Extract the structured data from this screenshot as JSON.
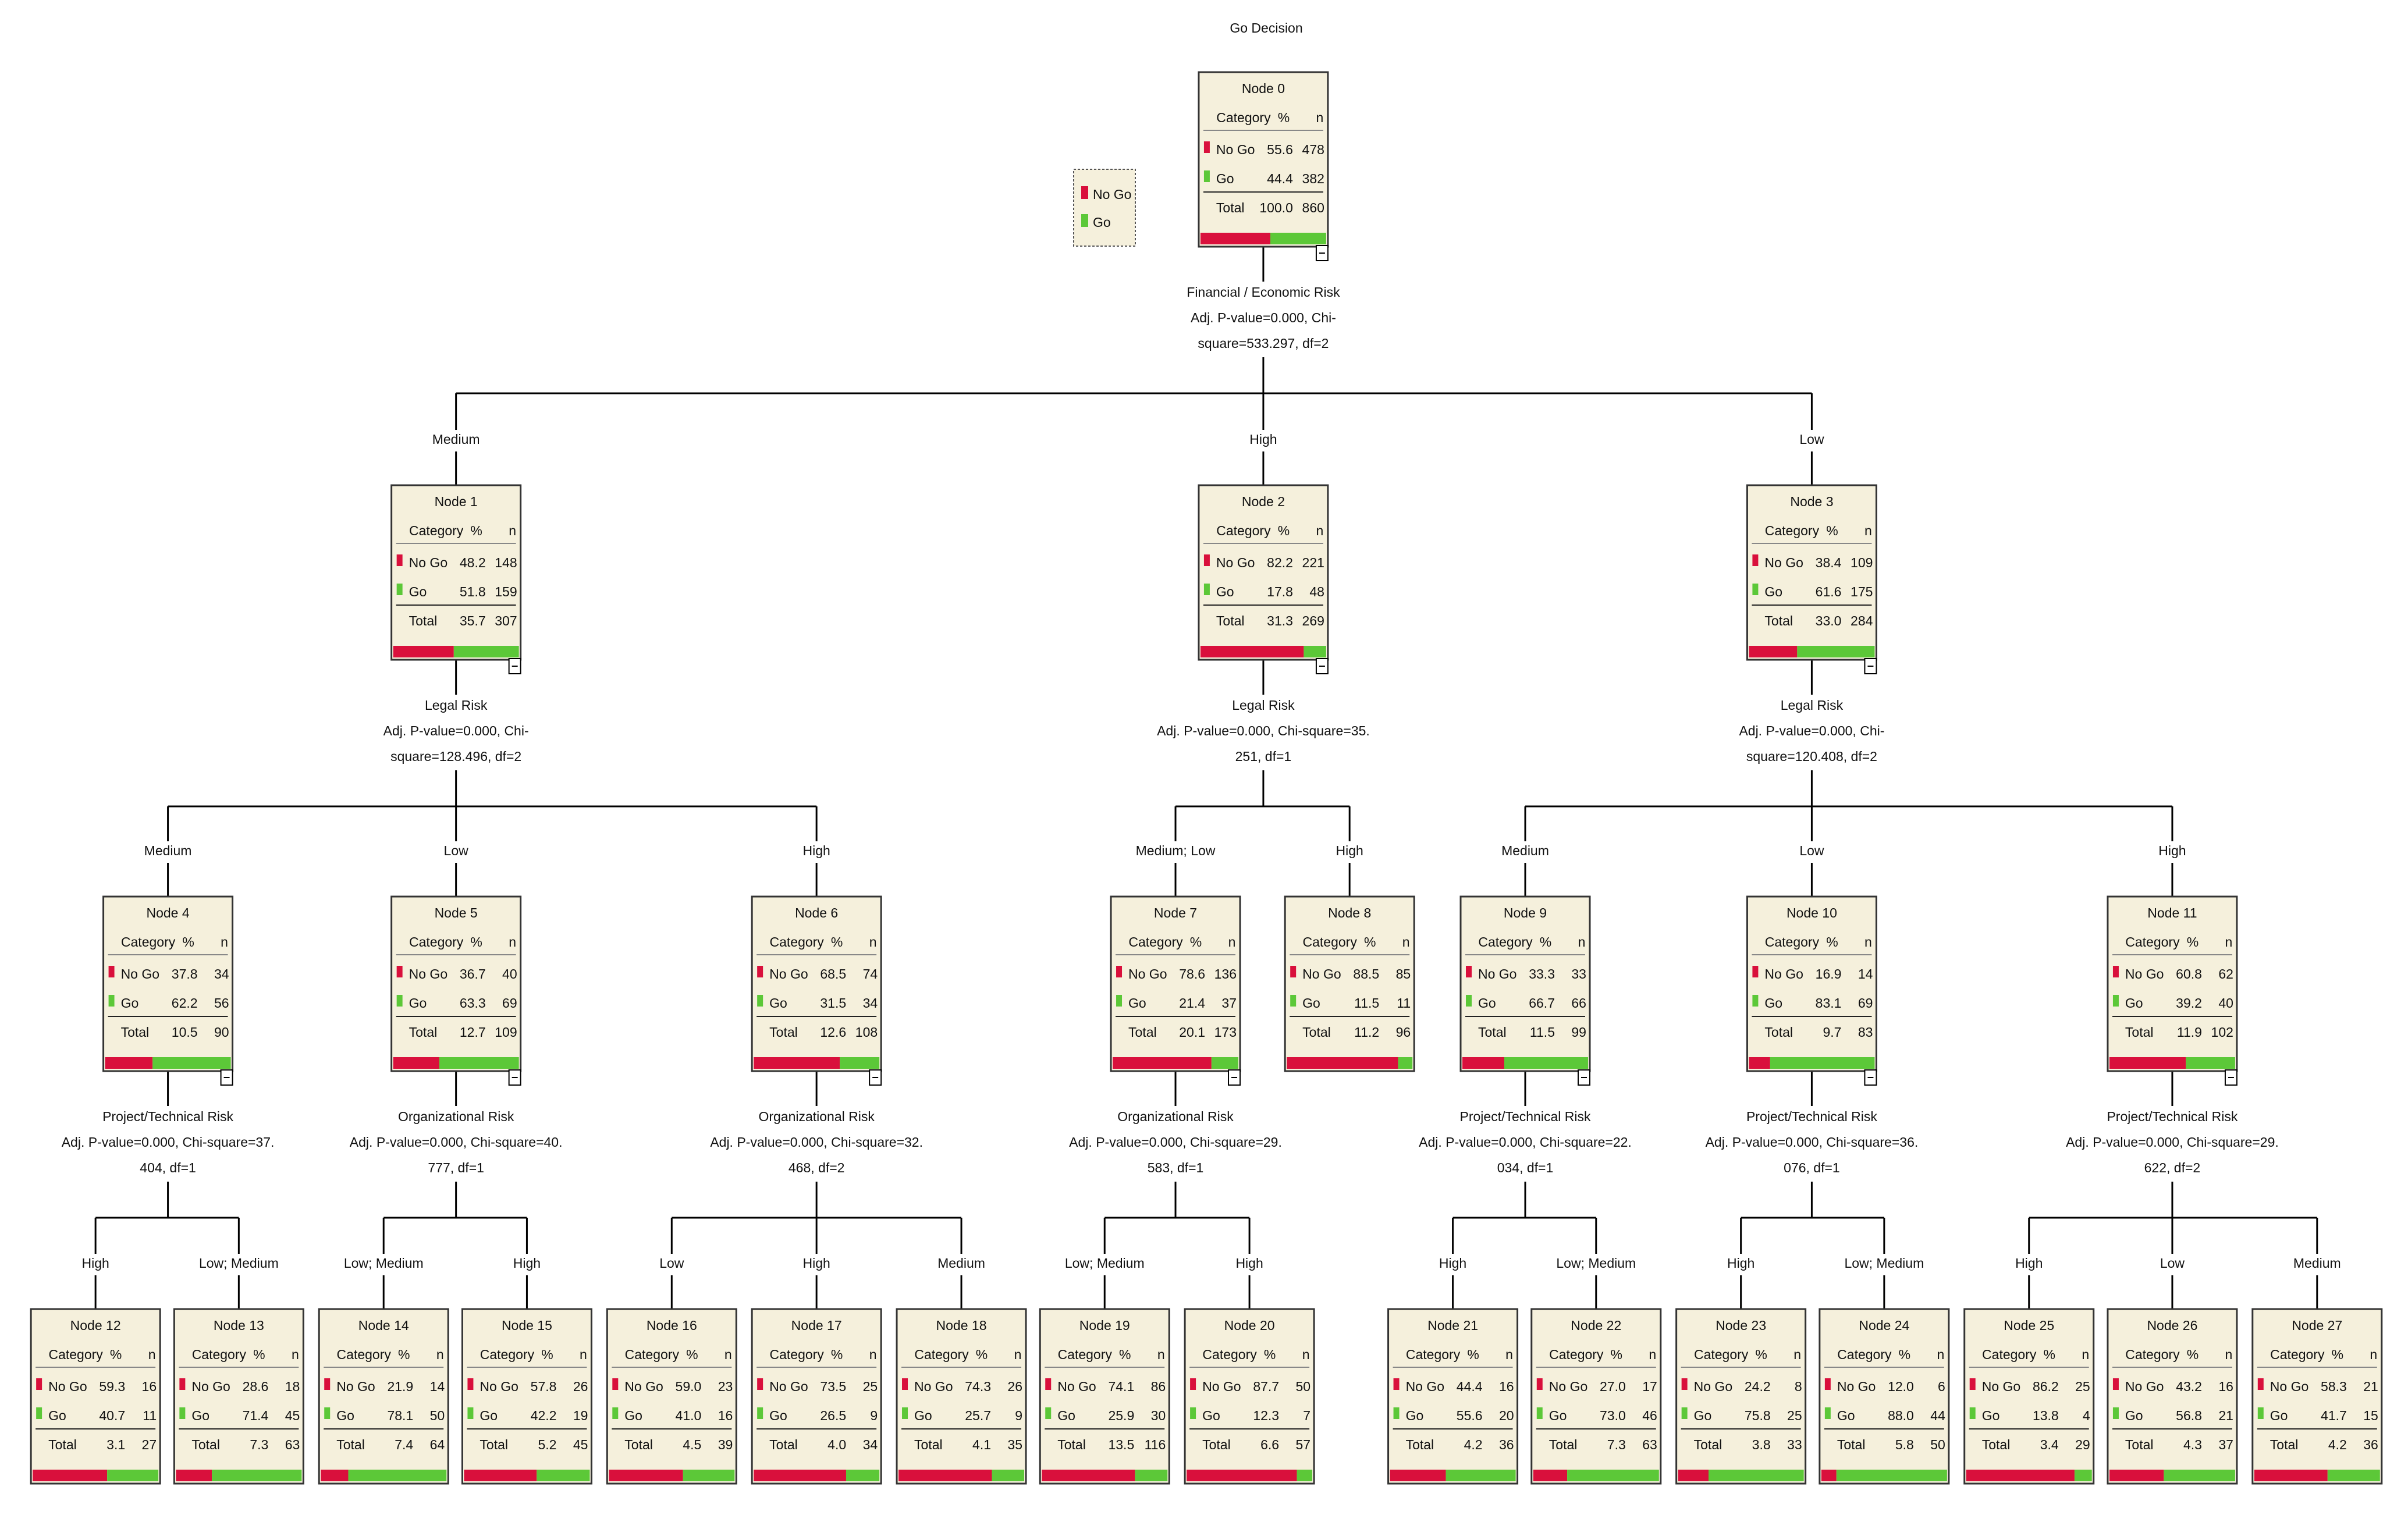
{
  "title": "Go Decision",
  "categories": [
    "No Go",
    "Go"
  ],
  "legend": [
    {
      "label": "No Go",
      "color": "#d9103c"
    },
    {
      "label": "Go",
      "color": "#5cc838"
    }
  ],
  "header": [
    "Category",
    "%",
    "n"
  ],
  "total_label": "Total",
  "nodes": [
    {
      "name": "Node 0",
      "rows": [
        {
          "pct": "55.6",
          "n": 478
        },
        {
          "pct": "44.4",
          "n": 382
        },
        {
          "pct": "100.0",
          "n": 860
        }
      ],
      "split": [
        "Financial / Economic Risk",
        "Adj. P-value=0.000, Chi-",
        "square=533.297, df=2"
      ]
    },
    {
      "name": "Node 1",
      "edge": "Medium",
      "rows": [
        {
          "pct": "48.2",
          "n": 148
        },
        {
          "pct": "51.8",
          "n": 159
        },
        {
          "pct": "35.7",
          "n": 307
        }
      ],
      "split": [
        "Legal Risk",
        "Adj. P-value=0.000, Chi-",
        "square=128.496, df=2"
      ]
    },
    {
      "name": "Node 2",
      "edge": "High",
      "rows": [
        {
          "pct": "82.2",
          "n": 221
        },
        {
          "pct": "17.8",
          "n": 48
        },
        {
          "pct": "31.3",
          "n": 269
        }
      ],
      "split": [
        "Legal Risk",
        "Adj. P-value=0.000, Chi-square=35.",
        "251, df=1"
      ]
    },
    {
      "name": "Node 3",
      "edge": "Low",
      "rows": [
        {
          "pct": "38.4",
          "n": 109
        },
        {
          "pct": "61.6",
          "n": 175
        },
        {
          "pct": "33.0",
          "n": 284
        }
      ],
      "split": [
        "Legal Risk",
        "Adj. P-value=0.000, Chi-",
        "square=120.408, df=2"
      ]
    },
    {
      "name": "Node 4",
      "edge": "Medium",
      "rows": [
        {
          "pct": "37.8",
          "n": 34
        },
        {
          "pct": "62.2",
          "n": 56
        },
        {
          "pct": "10.5",
          "n": 90
        }
      ],
      "split": [
        "Project/Technical Risk",
        "Adj. P-value=0.000, Chi-square=37.",
        "404, df=1"
      ]
    },
    {
      "name": "Node 5",
      "edge": "Low",
      "rows": [
        {
          "pct": "36.7",
          "n": 40
        },
        {
          "pct": "63.3",
          "n": 69
        },
        {
          "pct": "12.7",
          "n": 109
        }
      ],
      "split": [
        "Organizational Risk",
        "Adj. P-value=0.000, Chi-square=40.",
        "777, df=1"
      ]
    },
    {
      "name": "Node 6",
      "edge": "High",
      "rows": [
        {
          "pct": "68.5",
          "n": 74
        },
        {
          "pct": "31.5",
          "n": 34
        },
        {
          "pct": "12.6",
          "n": 108
        }
      ],
      "split": [
        "Organizational Risk",
        "Adj. P-value=0.000, Chi-square=32.",
        "468, df=2"
      ]
    },
    {
      "name": "Node 7",
      "edge": "Medium; Low",
      "rows": [
        {
          "pct": "78.6",
          "n": 136
        },
        {
          "pct": "21.4",
          "n": 37
        },
        {
          "pct": "20.1",
          "n": 173
        }
      ],
      "split": [
        "Organizational Risk",
        "Adj. P-value=0.000, Chi-square=29.",
        "583, df=1"
      ]
    },
    {
      "name": "Node 8",
      "edge": "High",
      "rows": [
        {
          "pct": "88.5",
          "n": 85
        },
        {
          "pct": "11.5",
          "n": 11
        },
        {
          "pct": "11.2",
          "n": 96
        }
      ]
    },
    {
      "name": "Node 9",
      "edge": "Medium",
      "rows": [
        {
          "pct": "33.3",
          "n": 33
        },
        {
          "pct": "66.7",
          "n": 66
        },
        {
          "pct": "11.5",
          "n": 99
        }
      ],
      "split": [
        "Project/Technical Risk",
        "Adj. P-value=0.000, Chi-square=22.",
        "034, df=1"
      ]
    },
    {
      "name": "Node 10",
      "edge": "Low",
      "rows": [
        {
          "pct": "16.9",
          "n": 14
        },
        {
          "pct": "83.1",
          "n": 69
        },
        {
          "pct": "9.7",
          "n": 83
        }
      ],
      "split": [
        "Project/Technical Risk",
        "Adj. P-value=0.000, Chi-square=36.",
        "076, df=1"
      ]
    },
    {
      "name": "Node 11",
      "edge": "High",
      "rows": [
        {
          "pct": "60.8",
          "n": 62
        },
        {
          "pct": "39.2",
          "n": 40
        },
        {
          "pct": "11.9",
          "n": 102
        }
      ],
      "split": [
        "Project/Technical Risk",
        "Adj. P-value=0.000, Chi-square=29.",
        "622, df=2"
      ]
    },
    {
      "name": "Node 12",
      "edge": "High",
      "rows": [
        {
          "pct": "59.3",
          "n": 16
        },
        {
          "pct": "40.7",
          "n": 11
        },
        {
          "pct": "3.1",
          "n": 27
        }
      ]
    },
    {
      "name": "Node 13",
      "edge": "Low; Medium",
      "rows": [
        {
          "pct": "28.6",
          "n": 18
        },
        {
          "pct": "71.4",
          "n": 45
        },
        {
          "pct": "7.3",
          "n": 63
        }
      ]
    },
    {
      "name": "Node 14",
      "edge": "Low; Medium",
      "rows": [
        {
          "pct": "21.9",
          "n": 14
        },
        {
          "pct": "78.1",
          "n": 50
        },
        {
          "pct": "7.4",
          "n": 64
        }
      ]
    },
    {
      "name": "Node 15",
      "edge": "High",
      "rows": [
        {
          "pct": "57.8",
          "n": 26
        },
        {
          "pct": "42.2",
          "n": 19
        },
        {
          "pct": "5.2",
          "n": 45
        }
      ]
    },
    {
      "name": "Node 16",
      "edge": "Low",
      "rows": [
        {
          "pct": "59.0",
          "n": 23
        },
        {
          "pct": "41.0",
          "n": 16
        },
        {
          "pct": "4.5",
          "n": 39
        }
      ]
    },
    {
      "name": "Node 17",
      "edge": "High",
      "rows": [
        {
          "pct": "73.5",
          "n": 25
        },
        {
          "pct": "26.5",
          "n": 9
        },
        {
          "pct": "4.0",
          "n": 34
        }
      ]
    },
    {
      "name": "Node 18",
      "edge": "Medium",
      "rows": [
        {
          "pct": "74.3",
          "n": 26
        },
        {
          "pct": "25.7",
          "n": 9
        },
        {
          "pct": "4.1",
          "n": 35
        }
      ]
    },
    {
      "name": "Node 19",
      "edge": "Low; Medium",
      "rows": [
        {
          "pct": "74.1",
          "n": 86
        },
        {
          "pct": "25.9",
          "n": 30
        },
        {
          "pct": "13.5",
          "n": 116
        }
      ]
    },
    {
      "name": "Node 20",
      "edge": "High",
      "rows": [
        {
          "pct": "87.7",
          "n": 50
        },
        {
          "pct": "12.3",
          "n": 7
        },
        {
          "pct": "6.6",
          "n": 57
        }
      ]
    },
    {
      "name": "Node 21",
      "edge": "High",
      "rows": [
        {
          "pct": "44.4",
          "n": 16
        },
        {
          "pct": "55.6",
          "n": 20
        },
        {
          "pct": "4.2",
          "n": 36
        }
      ]
    },
    {
      "name": "Node 22",
      "edge": "Low; Medium",
      "rows": [
        {
          "pct": "27.0",
          "n": 17
        },
        {
          "pct": "73.0",
          "n": 46
        },
        {
          "pct": "7.3",
          "n": 63
        }
      ]
    },
    {
      "name": "Node 23",
      "edge": "High",
      "rows": [
        {
          "pct": "24.2",
          "n": 8
        },
        {
          "pct": "75.8",
          "n": 25
        },
        {
          "pct": "3.8",
          "n": 33
        }
      ]
    },
    {
      "name": "Node 24",
      "edge": "Low; Medium",
      "rows": [
        {
          "pct": "12.0",
          "n": 6
        },
        {
          "pct": "88.0",
          "n": 44
        },
        {
          "pct": "5.8",
          "n": 50
        }
      ]
    },
    {
      "name": "Node 25",
      "edge": "High",
      "rows": [
        {
          "pct": "86.2",
          "n": 25
        },
        {
          "pct": "13.8",
          "n": 4
        },
        {
          "pct": "3.4",
          "n": 29
        }
      ]
    },
    {
      "name": "Node 26",
      "edge": "Low",
      "rows": [
        {
          "pct": "43.2",
          "n": 16
        },
        {
          "pct": "56.8",
          "n": 21
        },
        {
          "pct": "4.3",
          "n": 37
        }
      ]
    },
    {
      "name": "Node 27",
      "edge": "Medium",
      "rows": [
        {
          "pct": "58.3",
          "n": 21
        },
        {
          "pct": "41.7",
          "n": 15
        },
        {
          "pct": "4.2",
          "n": 36
        }
      ]
    }
  ]
}
